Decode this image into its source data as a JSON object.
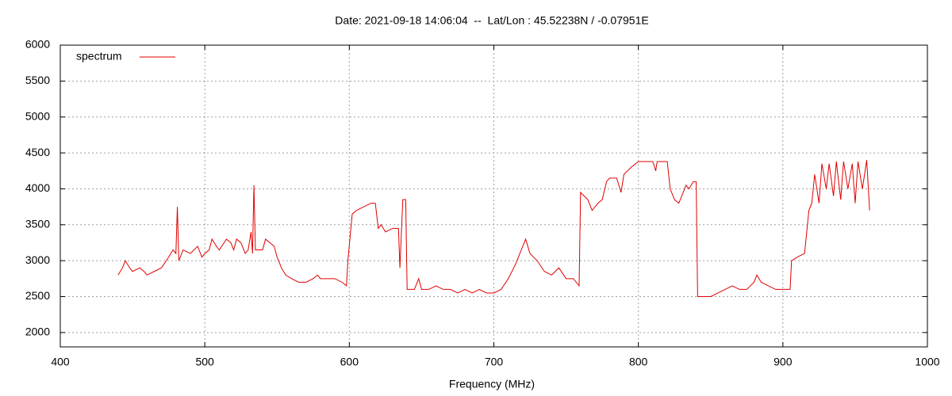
{
  "chart_data": {
    "type": "line",
    "title": "Date: 2021-09-18 14:06:04  --  Lat/Lon : 45.52238N / -0.07951E",
    "x_label": "Frequency (MHz)",
    "xlim": [
      400,
      1000
    ],
    "xticks": [
      400,
      500,
      600,
      700,
      800,
      900,
      1000
    ],
    "ylim": [
      1800,
      6000
    ],
    "yticks": [
      2000,
      2500,
      3000,
      3500,
      4000,
      4500,
      5000,
      5500,
      6000
    ],
    "grid": true,
    "legend": "upper left",
    "series": [
      {
        "name": "spectrum",
        "color": "#e00000",
        "x": [
          440,
          443,
          445,
          448,
          450,
          455,
          458,
          460,
          465,
          470,
          475,
          478,
          480,
          481,
          482,
          485,
          490,
          495,
          498,
          500,
          503,
          505,
          508,
          510,
          515,
          518,
          520,
          522,
          525,
          528,
          530,
          532,
          533,
          534,
          535,
          540,
          542,
          545,
          548,
          550,
          553,
          556,
          560,
          565,
          570,
          575,
          578,
          580,
          585,
          590,
          595,
          598,
          599,
          602,
          605,
          610,
          615,
          618,
          620,
          622,
          625,
          630,
          634,
          635,
          637,
          639,
          640,
          645,
          648,
          650,
          655,
          660,
          665,
          670,
          675,
          680,
          685,
          690,
          695,
          700,
          705,
          710,
          715,
          718,
          720,
          722,
          725,
          730,
          735,
          740,
          745,
          750,
          755,
          759,
          760,
          765,
          768,
          772,
          775,
          778,
          780,
          785,
          788,
          790,
          795,
          800,
          805,
          810,
          812,
          813,
          815,
          820,
          822,
          825,
          828,
          830,
          833,
          835,
          838,
          840,
          841,
          845,
          850,
          855,
          860,
          865,
          870,
          875,
          880,
          882,
          885,
          890,
          895,
          898,
          900,
          905,
          906,
          910,
          915,
          918,
          920,
          922,
          925,
          927,
          930,
          932,
          935,
          937,
          940,
          942,
          945,
          948,
          950,
          952,
          955,
          958,
          960
        ],
        "values": [
          2800,
          2900,
          3000,
          2900,
          2850,
          2900,
          2850,
          2800,
          2850,
          2900,
          3050,
          3150,
          3100,
          3750,
          3000,
          3150,
          3100,
          3200,
          3050,
          3100,
          3150,
          3300,
          3200,
          3150,
          3300,
          3250,
          3150,
          3300,
          3250,
          3100,
          3150,
          3400,
          3100,
          4050,
          3150,
          3150,
          3300,
          3250,
          3200,
          3050,
          2900,
          2800,
          2750,
          2700,
          2700,
          2750,
          2800,
          2750,
          2750,
          2750,
          2700,
          2650,
          3000,
          3650,
          3700,
          3750,
          3800,
          3800,
          3450,
          3500,
          3400,
          3450,
          3450,
          2900,
          3850,
          3850,
          2600,
          2600,
          2750,
          2600,
          2600,
          2650,
          2600,
          2600,
          2550,
          2600,
          2550,
          2600,
          2550,
          2550,
          2600,
          2750,
          2950,
          3100,
          3200,
          3300,
          3100,
          3000,
          2850,
          2800,
          2900,
          2750,
          2750,
          2650,
          3950,
          3850,
          3700,
          3800,
          3850,
          4100,
          4150,
          4150,
          3950,
          4200,
          4300,
          4380,
          4380,
          4380,
          4250,
          4380,
          4380,
          4380,
          4000,
          3850,
          3800,
          3900,
          4050,
          4000,
          4100,
          4100,
          2500,
          2500,
          2500,
          2550,
          2600,
          2650,
          2600,
          2600,
          2700,
          2800,
          2700,
          2650,
          2600,
          2600,
          2600,
          2600,
          3000,
          3050,
          3100,
          3700,
          3800,
          4200,
          3800,
          4350,
          4000,
          4350,
          3900,
          4380,
          3850,
          4380,
          4000,
          4350,
          3800,
          4380,
          4000,
          4400,
          3700
        ]
      }
    ]
  }
}
